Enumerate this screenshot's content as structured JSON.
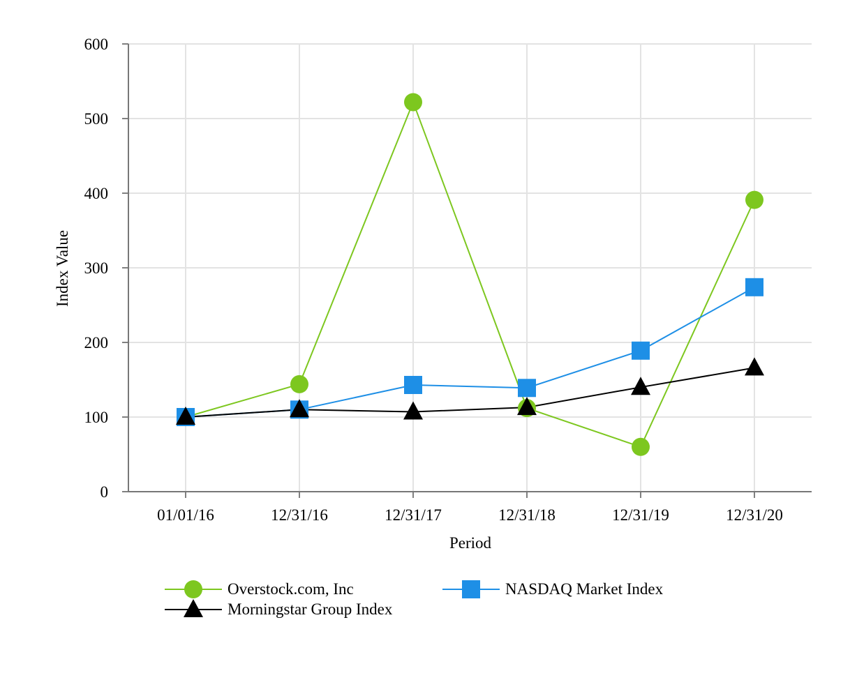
{
  "chart_data": {
    "type": "line",
    "title": "",
    "xlabel": "Period",
    "ylabel": "Index Value",
    "categories": [
      "01/01/16",
      "12/31/16",
      "12/31/17",
      "12/31/18",
      "12/31/19",
      "12/31/20"
    ],
    "ylim": [
      0,
      600
    ],
    "yticks": [
      0,
      100,
      200,
      300,
      400,
      500,
      600
    ],
    "grid": true,
    "legend_position": "bottom",
    "series": [
      {
        "name": "Overstock.com, Inc",
        "values": [
          100,
          144,
          522,
          112,
          60,
          391
        ],
        "color": "#7dc71f",
        "marker": "circle"
      },
      {
        "name": "NASDAQ Market Index",
        "values": [
          100,
          110,
          143,
          139,
          189,
          274
        ],
        "color": "#1e8fe6",
        "marker": "square"
      },
      {
        "name": "Morningstar Group Index",
        "values": [
          100,
          110,
          107,
          113,
          140,
          166
        ],
        "color": "#000000",
        "marker": "triangle"
      }
    ]
  }
}
